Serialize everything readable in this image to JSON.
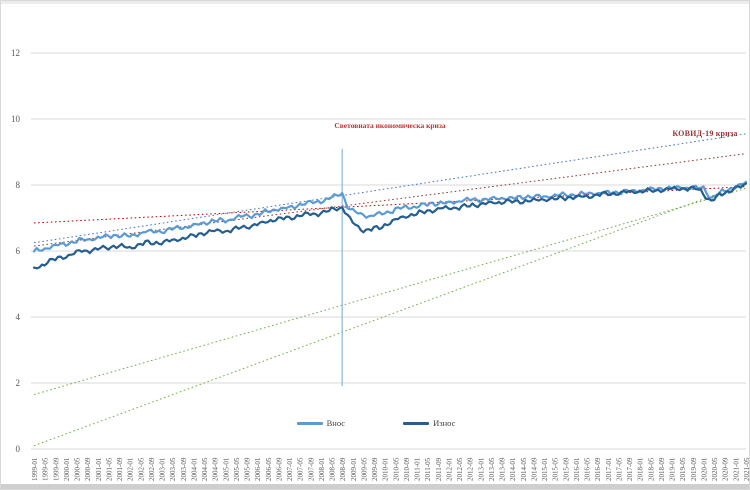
{
  "window": {
    "title": ""
  },
  "colors": {
    "grid": "#d9d9d9",
    "axis_text": "#595959",
    "crisis_line": "#8ab6d4",
    "crisis_label": "#bf3330",
    "covid_label": "#943634",
    "series_imports": "#5b9bd5",
    "series_exports": "#255e91",
    "trend_red": "#c00000",
    "trend_darkred": "#8b3a32",
    "trend_blue": "#4472c4",
    "trend_green": "#70ad47"
  },
  "chart_data": {
    "type": "line",
    "title": "",
    "xlabel": "",
    "ylabel": "",
    "ylim": [
      0,
      13
    ],
    "y_ticks": [
      0,
      2,
      4,
      6,
      8,
      10,
      12
    ],
    "grid": true,
    "legend_position": "bottom-center",
    "x_ticks": [
      "1999-01",
      "1999-05",
      "1999-09",
      "2000-01",
      "2000-05",
      "2000-09",
      "2001-01",
      "2001-05",
      "2001-09",
      "2002-01",
      "2002-05",
      "2002-09",
      "2003-01",
      "2003-05",
      "2003-09",
      "2004-01",
      "2004-05",
      "2004-09",
      "2005-01",
      "2005-05",
      "2005-09",
      "2006-01",
      "2006-05",
      "2006-09",
      "2007-01",
      "2007-05",
      "2007-09",
      "2008-01",
      "2008-05",
      "2008-09",
      "2009-01",
      "2009-05",
      "2009-09",
      "2010-01",
      "2010-05",
      "2010-09",
      "2011-01",
      "2011-05",
      "2011-09",
      "2012-01",
      "2012-05",
      "2012-09",
      "2013-01",
      "2013-05",
      "2013-09",
      "2014-01",
      "2014-05",
      "2014-09",
      "2015-01",
      "2015-05",
      "2015-09",
      "2016-01",
      "2016-05",
      "2016-09",
      "2017-01",
      "2017-05",
      "2017-09",
      "2018-01",
      "2018-05",
      "2018-09",
      "2019-01",
      "2019-05",
      "2019-09",
      "2020-01",
      "2020-05",
      "2020-09",
      "2021-01",
      "2021-05"
    ],
    "x_tick_every_n_months": 4,
    "months_total": 269,
    "series": [
      {
        "name": "Внос",
        "color": "#5b9bd5",
        "anchors": [
          [
            0,
            5.98
          ],
          [
            6,
            6.12
          ],
          [
            12,
            6.22
          ],
          [
            18,
            6.33
          ],
          [
            24,
            6.4
          ],
          [
            30,
            6.48
          ],
          [
            36,
            6.45
          ],
          [
            42,
            6.58
          ],
          [
            48,
            6.6
          ],
          [
            54,
            6.7
          ],
          [
            60,
            6.76
          ],
          [
            66,
            6.9
          ],
          [
            72,
            6.92
          ],
          [
            78,
            7.05
          ],
          [
            84,
            7.1
          ],
          [
            90,
            7.25
          ],
          [
            96,
            7.3
          ],
          [
            102,
            7.45
          ],
          [
            108,
            7.5
          ],
          [
            114,
            7.68
          ],
          [
            116,
            7.75
          ],
          [
            118,
            7.35
          ],
          [
            120,
            7.2
          ],
          [
            126,
            7.05
          ],
          [
            132,
            7.15
          ],
          [
            138,
            7.3
          ],
          [
            144,
            7.35
          ],
          [
            150,
            7.45
          ],
          [
            156,
            7.45
          ],
          [
            162,
            7.55
          ],
          [
            168,
            7.55
          ],
          [
            174,
            7.6
          ],
          [
            180,
            7.6
          ],
          [
            186,
            7.65
          ],
          [
            192,
            7.65
          ],
          [
            198,
            7.7
          ],
          [
            204,
            7.7
          ],
          [
            210,
            7.75
          ],
          [
            216,
            7.76
          ],
          [
            222,
            7.8
          ],
          [
            228,
            7.83
          ],
          [
            234,
            7.88
          ],
          [
            240,
            7.9
          ],
          [
            246,
            7.93
          ],
          [
            252,
            7.9
          ],
          [
            255,
            7.6
          ],
          [
            258,
            7.75
          ],
          [
            264,
            7.95
          ],
          [
            268,
            8.05
          ]
        ]
      },
      {
        "name": "Износ",
        "color": "#255e91",
        "anchors": [
          [
            0,
            5.45
          ],
          [
            6,
            5.7
          ],
          [
            12,
            5.85
          ],
          [
            18,
            6.0
          ],
          [
            24,
            6.05
          ],
          [
            30,
            6.15
          ],
          [
            36,
            6.1
          ],
          [
            42,
            6.25
          ],
          [
            48,
            6.25
          ],
          [
            54,
            6.35
          ],
          [
            60,
            6.45
          ],
          [
            66,
            6.6
          ],
          [
            72,
            6.6
          ],
          [
            78,
            6.7
          ],
          [
            84,
            6.8
          ],
          [
            90,
            6.95
          ],
          [
            96,
            7.0
          ],
          [
            102,
            7.1
          ],
          [
            108,
            7.15
          ],
          [
            114,
            7.3
          ],
          [
            116,
            7.32
          ],
          [
            120,
            6.85
          ],
          [
            124,
            6.62
          ],
          [
            130,
            6.7
          ],
          [
            136,
            6.95
          ],
          [
            142,
            7.1
          ],
          [
            148,
            7.2
          ],
          [
            154,
            7.3
          ],
          [
            160,
            7.32
          ],
          [
            166,
            7.4
          ],
          [
            172,
            7.45
          ],
          [
            178,
            7.5
          ],
          [
            184,
            7.5
          ],
          [
            190,
            7.55
          ],
          [
            196,
            7.58
          ],
          [
            202,
            7.62
          ],
          [
            208,
            7.65
          ],
          [
            214,
            7.72
          ],
          [
            220,
            7.75
          ],
          [
            226,
            7.8
          ],
          [
            232,
            7.82
          ],
          [
            238,
            7.87
          ],
          [
            244,
            7.9
          ],
          [
            250,
            7.88
          ],
          [
            255,
            7.5
          ],
          [
            258,
            7.7
          ],
          [
            264,
            7.9
          ],
          [
            268,
            8.0
          ]
        ]
      }
    ],
    "trend_lines": [
      {
        "color": "#70ad47",
        "from": 1.65,
        "to": 7.9
      },
      {
        "color": "#70ad47",
        "from": 0.1,
        "to": 8.05
      },
      {
        "color": "#c00000",
        "from": 6.85,
        "to": 7.95
      },
      {
        "color": "#8b3a32",
        "from": 6.15,
        "to": 8.95
      },
      {
        "color": "#4472c4",
        "from": 6.25,
        "to": 9.55
      }
    ],
    "event_lines": [
      {
        "label": "Световната икономическа криза",
        "x_index": 116,
        "from": 1.9,
        "to": 9.1,
        "color": "#8ab6d4"
      }
    ],
    "annotations": [
      {
        "text": "КОВИД-19 криза",
        "x_index": 262,
        "value": 9.45
      }
    ]
  },
  "legend": {
    "items": [
      {
        "label": "Внос",
        "color": "#5b9bd5"
      },
      {
        "label": "Износ",
        "color": "#255e91"
      }
    ]
  }
}
